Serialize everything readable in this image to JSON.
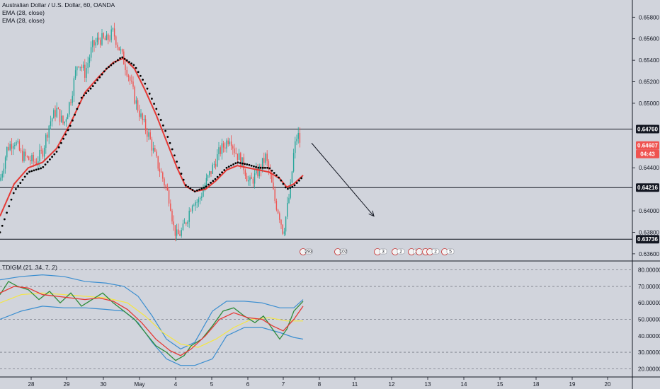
{
  "header": {
    "symbol_title": "Australian Dollar / U.S. Dollar, 60, OANDA",
    "ema_1": "EMA (28, close)",
    "ema_2": "EMA (28, close)"
  },
  "indicator": {
    "label": "TDIGM (21, 34, 7, 2)"
  },
  "colors": {
    "background": "#d1d4dc",
    "up_candle": "#26a69a",
    "down_candle": "#ef5350",
    "ema_red": "#e53935",
    "ema_dots": "#000000",
    "bollinger": "#3b8ed0",
    "rsi_green": "#2e8b3a",
    "signal_red": "#e53935",
    "baseline_yellow": "#f5e642",
    "current_price_tag": "#ef5350",
    "level_tag": "#131722"
  },
  "price_axis": {
    "ticks": [
      "0.65800",
      "0.65600",
      "0.65400",
      "0.65200",
      "0.65000",
      "0.64400",
      "0.64000",
      "0.63800",
      "0.63600"
    ]
  },
  "price_tags": {
    "level_top": "0.64760",
    "current": "0.64607",
    "countdown": "04:43",
    "level_mid": "0.64216",
    "level_bottom": "0.63736"
  },
  "indicator_axis": {
    "ticks": [
      "80.00000",
      "70.00000",
      "60.00000",
      "50.00000",
      "40.00000",
      "30.00000",
      "20.00000"
    ]
  },
  "time_axis": {
    "labels": [
      "28",
      "29",
      "30",
      "May",
      "4",
      "5",
      "6",
      "7",
      "8",
      "11",
      "12",
      "13",
      "14",
      "15",
      "18",
      "19",
      "20"
    ]
  },
  "events": {
    "labels": [
      "293",
      "102",
      "3",
      "2",
      "11",
      "22",
      "8",
      "2",
      "5"
    ]
  },
  "chart_data": [
    {
      "type": "candlestick",
      "title": "Australian Dollar / U.S. Dollar, 60, OANDA",
      "ylim": [
        0.6354,
        0.6596
      ],
      "y_ticks": [
        0.658,
        0.656,
        0.654,
        0.652,
        0.65,
        0.644,
        0.64,
        0.638,
        0.636
      ],
      "x_labels": [
        "28",
        "29",
        "30",
        "May",
        "4",
        "5",
        "6",
        "7",
        "8",
        "11",
        "12",
        "13",
        "14",
        "15",
        "18",
        "19",
        "20"
      ],
      "horizontal_levels": [
        0.6476,
        0.64216,
        0.63736
      ],
      "current_price": 0.64607,
      "price_path": [
        [
          0,
          0.6428
        ],
        [
          10,
          0.6458
        ],
        [
          20,
          0.6466
        ],
        [
          30,
          0.6452
        ],
        [
          40,
          0.6448
        ],
        [
          50,
          0.6445
        ],
        [
          60,
          0.6455
        ],
        [
          70,
          0.6482
        ],
        [
          80,
          0.6494
        ],
        [
          90,
          0.648
        ],
        [
          100,
          0.6505
        ],
        [
          110,
          0.654
        ],
        [
          120,
          0.6528
        ],
        [
          130,
          0.6552
        ],
        [
          140,
          0.656
        ],
        [
          150,
          0.6558
        ],
        [
          160,
          0.6566
        ],
        [
          170,
          0.6548
        ],
        [
          180,
          0.653
        ],
        [
          190,
          0.6505
        ],
        [
          200,
          0.6485
        ],
        [
          210,
          0.647
        ],
        [
          220,
          0.6448
        ],
        [
          230,
          0.643
        ],
        [
          240,
          0.641
        ],
        [
          245,
          0.6385
        ],
        [
          250,
          0.6376
        ],
        [
          258,
          0.6382
        ],
        [
          265,
          0.6395
        ],
        [
          272,
          0.641
        ],
        [
          280,
          0.6408
        ],
        [
          290,
          0.6425
        ],
        [
          300,
          0.644
        ],
        [
          310,
          0.6455
        ],
        [
          318,
          0.6462
        ],
        [
          325,
          0.647
        ],
        [
          330,
          0.6458
        ],
        [
          337,
          0.645
        ],
        [
          345,
          0.644
        ],
        [
          352,
          0.6425
        ],
        [
          360,
          0.6432
        ],
        [
          368,
          0.644
        ],
        [
          375,
          0.645
        ],
        [
          382,
          0.643
        ],
        [
          388,
          0.641
        ],
        [
          394,
          0.6398
        ],
        [
          400,
          0.638
        ],
        [
          405,
          0.64
        ],
        [
          410,
          0.642
        ],
        [
          415,
          0.6455
        ],
        [
          420,
          0.6472
        ],
        [
          425,
          0.6461
        ]
      ],
      "ema_red": [
        [
          0,
          0.6395
        ],
        [
          20,
          0.6425
        ],
        [
          40,
          0.644
        ],
        [
          60,
          0.6445
        ],
        [
          80,
          0.6458
        ],
        [
          100,
          0.6482
        ],
        [
          120,
          0.651
        ],
        [
          140,
          0.6525
        ],
        [
          160,
          0.6538
        ],
        [
          175,
          0.6542
        ],
        [
          190,
          0.6532
        ],
        [
          205,
          0.6512
        ],
        [
          220,
          0.649
        ],
        [
          235,
          0.6465
        ],
        [
          250,
          0.644
        ],
        [
          262,
          0.6423
        ],
        [
          275,
          0.6418
        ],
        [
          290,
          0.642
        ],
        [
          305,
          0.6428
        ],
        [
          320,
          0.6438
        ],
        [
          335,
          0.6442
        ],
        [
          350,
          0.644
        ],
        [
          365,
          0.6438
        ],
        [
          380,
          0.6436
        ],
        [
          395,
          0.643
        ],
        [
          405,
          0.6422
        ],
        [
          415,
          0.6425
        ],
        [
          428,
          0.6433
        ]
      ],
      "ema_dots": [
        [
          0,
          0.638
        ],
        [
          20,
          0.6418
        ],
        [
          40,
          0.6436
        ],
        [
          60,
          0.644
        ],
        [
          80,
          0.6455
        ],
        [
          100,
          0.648
        ],
        [
          115,
          0.6505
        ],
        [
          130,
          0.6515
        ],
        [
          150,
          0.6532
        ],
        [
          172,
          0.6543
        ],
        [
          190,
          0.6535
        ],
        [
          205,
          0.6518
        ],
        [
          220,
          0.6496
        ],
        [
          235,
          0.6472
        ],
        [
          250,
          0.6445
        ],
        [
          262,
          0.6424
        ],
        [
          275,
          0.6418
        ],
        [
          290,
          0.6422
        ],
        [
          305,
          0.643
        ],
        [
          320,
          0.644
        ],
        [
          335,
          0.6445
        ],
        [
          350,
          0.6443
        ],
        [
          365,
          0.644
        ],
        [
          380,
          0.644
        ],
        [
          395,
          0.643
        ],
        [
          405,
          0.642
        ],
        [
          415,
          0.6423
        ],
        [
          428,
          0.6432
        ]
      ],
      "forecast_arrow": [
        [
          440,
          0.6463
        ],
        [
          528,
          0.6395
        ]
      ]
    },
    {
      "type": "line",
      "title": "TDIGM (21, 34, 7, 2)",
      "ylim": [
        15,
        85
      ],
      "y_ticks": [
        80,
        70,
        60,
        50,
        40,
        30,
        20
      ],
      "series": [
        {
          "name": "",
          "color": "#3b8ed0",
          "x": [
            0,
            30,
            60,
            90,
            120,
            150,
            175,
            195,
            215,
            235,
            255,
            275,
            300,
            320,
            345,
            370,
            395,
            415,
            428
          ],
          "values": [
            74,
            76,
            77,
            76,
            73,
            72,
            70,
            64,
            52,
            38,
            32,
            36,
            55,
            61,
            61,
            60,
            57,
            57,
            62
          ]
        },
        {
          "name": "",
          "color": "#3b8ed0",
          "x": [
            0,
            30,
            60,
            90,
            120,
            150,
            175,
            195,
            215,
            235,
            255,
            275,
            300,
            320,
            345,
            370,
            395,
            415,
            428
          ],
          "values": [
            50,
            55,
            58,
            57,
            57,
            56,
            55,
            48,
            36,
            26,
            22,
            22,
            26,
            40,
            45,
            45,
            42,
            39,
            38
          ]
        },
        {
          "name": "",
          "color": "#f5e642",
          "x": [
            0,
            30,
            60,
            90,
            120,
            150,
            180,
            205,
            230,
            255,
            280,
            305,
            330,
            355,
            380,
            405,
            428
          ],
          "values": [
            60,
            65,
            66,
            65,
            64,
            63,
            60,
            52,
            42,
            35,
            33,
            38,
            45,
            50,
            51,
            49,
            49
          ]
        },
        {
          "name": "",
          "color": "#2e8b3a",
          "x": [
            0,
            12,
            25,
            40,
            55,
            70,
            85,
            100,
            115,
            130,
            145,
            160,
            175,
            190,
            205,
            220,
            235,
            248,
            260,
            270,
            285,
            300,
            315,
            330,
            345,
            360,
            372,
            385,
            395,
            405,
            415,
            428
          ],
          "values": [
            65,
            73,
            70,
            68,
            62,
            67,
            60,
            66,
            58,
            62,
            66,
            60,
            55,
            50,
            42,
            34,
            30,
            25,
            28,
            34,
            38,
            46,
            55,
            57,
            52,
            48,
            52,
            44,
            38,
            44,
            55,
            61
          ]
        },
        {
          "name": "",
          "color": "#e53935",
          "x": [
            0,
            20,
            40,
            60,
            80,
            100,
            120,
            140,
            160,
            180,
            200,
            220,
            240,
            255,
            270,
            290,
            310,
            330,
            350,
            370,
            385,
            400,
            415,
            428
          ],
          "values": [
            66,
            70,
            69,
            65,
            64,
            63,
            62,
            63,
            61,
            56,
            48,
            38,
            31,
            28,
            32,
            40,
            50,
            54,
            51,
            50,
            46,
            43,
            50,
            58
          ]
        }
      ],
      "levels": [
        80,
        70,
        50,
        30,
        20
      ]
    }
  ]
}
